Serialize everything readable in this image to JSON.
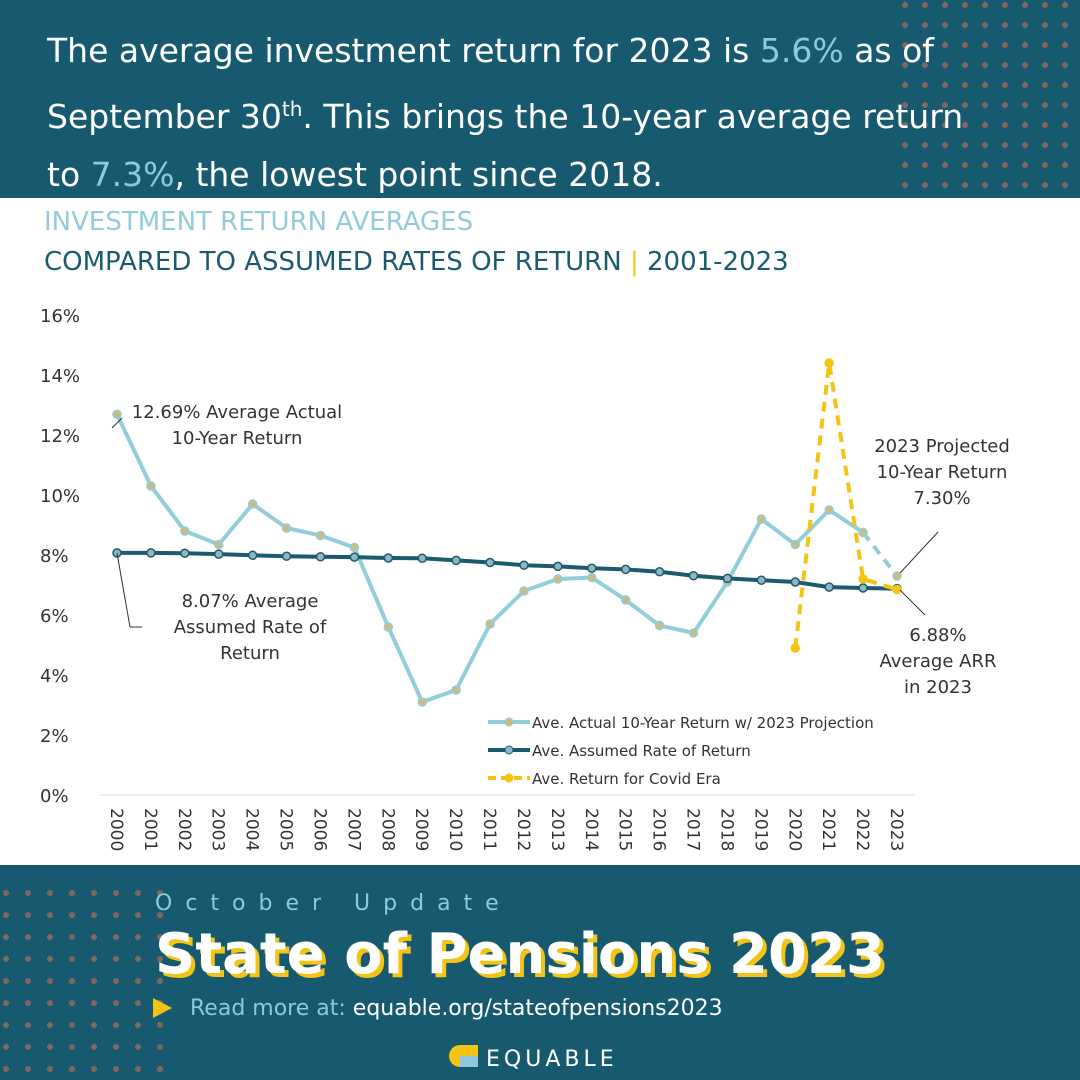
{
  "header": {
    "segments": [
      {
        "text": "The average investment return for 2023 is ",
        "highlight": false
      },
      {
        "text": "5.6%",
        "highlight": true
      },
      {
        "text": " as of September 30",
        "highlight": false
      },
      {
        "text": "th",
        "superscript": true
      },
      {
        "text": ". This brings the 10-year average return to ",
        "highlight": false
      },
      {
        "text": "7.3%",
        "highlight": true
      },
      {
        "text": ", the lowest point since 2018.",
        "highlight": false
      }
    ]
  },
  "chart_data": {
    "type": "line",
    "title": "INVESTMENT RETURN AVERAGES",
    "subtitle": {
      "main": "COMPARED TO ASSUMED RATES OF RETURN",
      "separator": "|",
      "range": "2001-2023"
    },
    "categories": [
      "2000",
      "2001",
      "2002",
      "2003",
      "2004",
      "2005",
      "2006",
      "2007",
      "2008",
      "2009",
      "2010",
      "2011",
      "2012",
      "2013",
      "2014",
      "2015",
      "2016",
      "2017",
      "2018",
      "2019",
      "2020",
      "2021",
      "2022",
      "2023"
    ],
    "series": [
      {
        "name": "Ave. Actual 10-Year Return w/ 2023 Projection",
        "color": "#92cddc",
        "marker_color": "#cdbb7e",
        "dashed_last_segment": true,
        "values": [
          12.69,
          10.3,
          8.8,
          8.35,
          9.7,
          8.9,
          8.65,
          8.25,
          5.6,
          3.1,
          3.5,
          5.7,
          6.8,
          7.2,
          7.25,
          6.5,
          5.65,
          5.4,
          7.1,
          9.2,
          8.35,
          9.5,
          8.75,
          7.3
        ]
      },
      {
        "name": "Ave. Assumed Rate of Return",
        "color": "#1b5b70",
        "marker_color": "#8fb7c3",
        "values": [
          8.07,
          8.07,
          8.06,
          8.03,
          7.99,
          7.96,
          7.94,
          7.93,
          7.9,
          7.89,
          7.82,
          7.75,
          7.66,
          7.62,
          7.56,
          7.52,
          7.44,
          7.31,
          7.22,
          7.16,
          7.1,
          6.93,
          6.9,
          6.88
        ]
      },
      {
        "name": "Ave. Return for Covid Era",
        "color": "#f5c314",
        "marker_color": "#f5c314",
        "dashed": true,
        "values": [
          null,
          null,
          null,
          null,
          null,
          null,
          null,
          null,
          null,
          null,
          null,
          null,
          null,
          null,
          null,
          null,
          null,
          null,
          null,
          null,
          4.9,
          14.4,
          7.2,
          6.85
        ]
      }
    ],
    "ylim": [
      0,
      16
    ],
    "yticks": [
      {
        "value": 0,
        "label": "0%"
      },
      {
        "value": 2,
        "label": "2%"
      },
      {
        "value": 4,
        "label": "4%"
      },
      {
        "value": 6,
        "label": "6%"
      },
      {
        "value": 8,
        "label": "8%"
      },
      {
        "value": 10,
        "label": "10%"
      },
      {
        "value": 12,
        "label": "12%"
      },
      {
        "value": 14,
        "label": "14%"
      },
      {
        "value": 16,
        "label": "16%"
      }
    ],
    "annotations": [
      {
        "lines": [
          "12.69% Average Actual",
          "10-Year Return"
        ]
      },
      {
        "lines": [
          "8.07% Average",
          "Assumed Rate of",
          "Return"
        ]
      },
      {
        "lines": [
          "2023 Projected",
          "10-Year Return",
          "7.30%"
        ]
      },
      {
        "lines": [
          "6.88%",
          "Average ARR",
          "in 2023"
        ]
      }
    ]
  },
  "footer": {
    "kicker": "October Update",
    "title": "State of Pensions 2023",
    "link_label": "Read more at:",
    "link": "equable.org/stateofpensions2023",
    "brand": "EQUABLE"
  }
}
